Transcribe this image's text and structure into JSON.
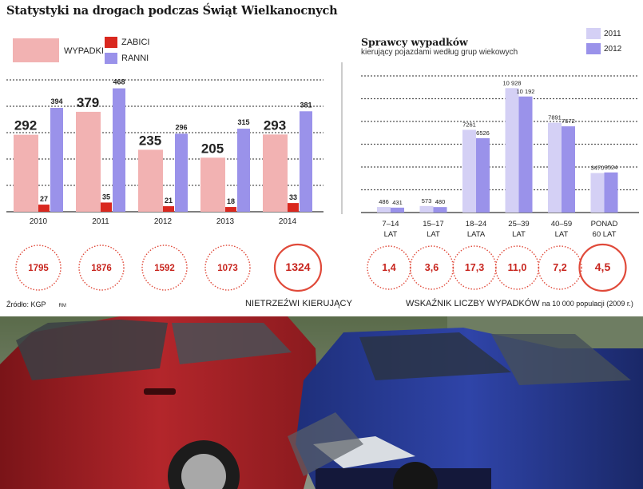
{
  "title": "Statystyki na drogach podczas Świąt Wielkanocnych",
  "legend_left": {
    "wypadki": "WYPADKI",
    "zabici": "ZABICI",
    "ranni": "RANNI"
  },
  "colors": {
    "wypadki": "#f2b2b2",
    "zabici": "#d9281f",
    "ranni": "#9a92ea",
    "light_2011": "#d4d0f5",
    "dark_2012": "#9a92ea",
    "circle_ring": "#e04a3a",
    "circle_text": "#c8261f"
  },
  "right_panel": {
    "title": "Sprawcy wypadków",
    "subtitle": "kierujący pojazdami według grup wiekowych",
    "legend_2011": "2011",
    "legend_2012": "2012"
  },
  "chart_data": [
    {
      "type": "bar",
      "categories": [
        "2010",
        "2011",
        "2012",
        "2013",
        "2014"
      ],
      "series": [
        {
          "name": "WYPADKI",
          "values": [
            292,
            379,
            235,
            205,
            293
          ]
        },
        {
          "name": "ZABICI",
          "values": [
            27,
            35,
            21,
            18,
            33
          ]
        },
        {
          "name": "RANNI",
          "values": [
            394,
            468,
            296,
            315,
            381
          ]
        }
      ],
      "ylim": [
        0,
        500
      ],
      "grid": true
    },
    {
      "type": "bar",
      "categories": [
        "7–14 LAT",
        "15–17 LAT",
        "18–24 LATA",
        "25–39 LAT",
        "40–59 LAT",
        "PONAD 60 LAT"
      ],
      "series": [
        {
          "name": "2011",
          "values": [
            486,
            573,
            7261,
            10928,
            7891,
            3470
          ]
        },
        {
          "name": "2012",
          "values": [
            431,
            480,
            6526,
            10192,
            7572,
            3524
          ]
        }
      ],
      "value_labels_2011": [
        "486",
        "573",
        "7261",
        "10 928",
        "7891",
        "3470"
      ],
      "value_labels_2012": [
        "431",
        "480",
        "6526",
        "10 192",
        "7572",
        "3524"
      ],
      "cat_line1": [
        "7–14",
        "15–17",
        "18–24",
        "25–39",
        "40–59",
        "PONAD"
      ],
      "cat_line2": [
        "LAT",
        "LAT",
        "LATA",
        "LAT",
        "LAT",
        "60 LAT"
      ],
      "ylim": [
        0,
        12000
      ],
      "grid": true
    }
  ],
  "drunk_drivers": {
    "values": [
      "1795",
      "1876",
      "1592",
      "1073",
      "1324"
    ],
    "label": "NIETRZEŹWI KIERUJĄCY"
  },
  "accident_rate": {
    "values": [
      "1,4",
      "3,6",
      "17,3",
      "11,0",
      "7,2",
      "4,5"
    ],
    "label": "WSKAŹNIK LICZBY WYPADKÓW",
    "label_small": "na 10 000 populacji (2009 r.)"
  },
  "source": "Źródło: KGP",
  "author": "RM"
}
